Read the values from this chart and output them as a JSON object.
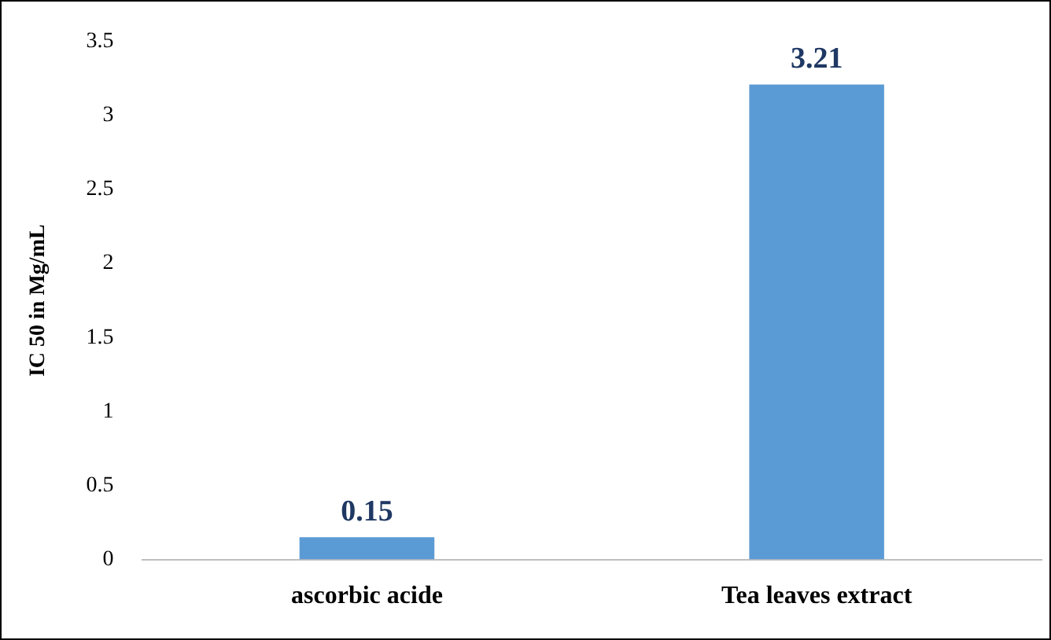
{
  "chart_data": {
    "type": "bar",
    "ylabel": "IC 50 in Mg/mL",
    "categories": [
      "ascorbic acide",
      "Tea leaves extract"
    ],
    "values": [
      0.15,
      3.21
    ],
    "color": "#5b9bd5",
    "ylim": [
      0,
      3.5
    ],
    "yticks": [
      0,
      0.5,
      1,
      1.5,
      2,
      2.5,
      3,
      3.5
    ],
    "grid": false,
    "legend": false,
    "data_labels": true
  }
}
